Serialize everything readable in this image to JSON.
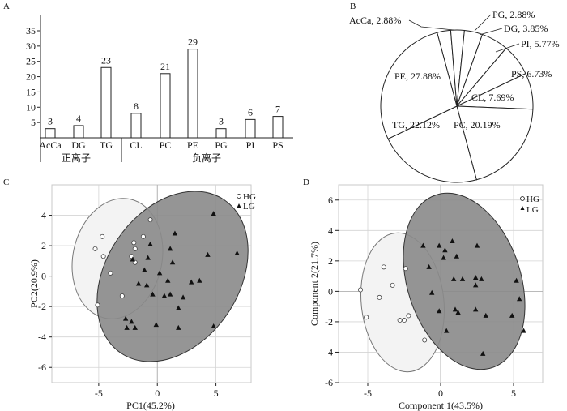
{
  "chart_data": [
    {
      "panel": "A",
      "type": "bar",
      "ylim": [
        0,
        35
      ],
      "yticks": [
        5,
        10,
        15,
        20,
        25,
        30,
        35
      ],
      "categories": [
        "AcCa",
        "DG",
        "TG",
        "CL",
        "PC",
        "PE",
        "PG",
        "PI",
        "PS"
      ],
      "values": [
        3,
        4,
        23,
        8,
        21,
        29,
        3,
        6,
        7
      ],
      "groups": [
        {
          "label": "正离子",
          "categories": [
            "AcCa",
            "DG",
            "TG"
          ]
        },
        {
          "label": "负离子",
          "categories": [
            "CL",
            "PC",
            "PE",
            "PG",
            "PI",
            "PS"
          ]
        }
      ]
    },
    {
      "panel": "B",
      "type": "pie",
      "labels": [
        "AcCa, 2.88%",
        "PG, 2.88%",
        "DG, 3.85%",
        "PI, 5.77%",
        "PS, 6.73%",
        "CL, 7.69%",
        "PC, 20.19%",
        "TG, 22.12%",
        "PE, 27.88%"
      ],
      "categories": [
        "AcCa",
        "PG",
        "DG",
        "PI",
        "PS",
        "CL",
        "PC",
        "TG",
        "PE"
      ],
      "values": [
        2.88,
        2.88,
        3.85,
        5.77,
        6.73,
        7.69,
        20.19,
        22.12,
        27.88
      ]
    },
    {
      "panel": "C",
      "type": "scatter",
      "xlabel": "PC1(45.2%)",
      "ylabel": "PC2(20.9%)",
      "xlim": [
        -9,
        8
      ],
      "ylim": [
        -7,
        6
      ],
      "xticks": [
        -5,
        0,
        5
      ],
      "yticks": [
        -6,
        -4,
        -2,
        0,
        2,
        4
      ],
      "legend": [
        "HG",
        "LG"
      ],
      "series": [
        {
          "name": "HG",
          "marker": "open-circle",
          "points": [
            [
              -5.3,
              1.8
            ],
            [
              -4.7,
              2.6
            ],
            [
              -4.6,
              1.3
            ],
            [
              -4.0,
              0.2
            ],
            [
              -5.1,
              -1.9
            ],
            [
              -3.0,
              -1.3
            ],
            [
              -2.2,
              1.3
            ],
            [
              -2.0,
              2.2
            ],
            [
              -1.9,
              0.9
            ],
            [
              -1.9,
              1.8
            ],
            [
              -1.2,
              2.6
            ],
            [
              -0.6,
              3.7
            ]
          ]
        },
        {
          "name": "LG",
          "marker": "filled-triangle",
          "points": [
            [
              4.8,
              4.1
            ],
            [
              1.5,
              2.8
            ],
            [
              -0.6,
              2.1
            ],
            [
              1.1,
              1.8
            ],
            [
              -0.8,
              1.2
            ],
            [
              1.3,
              0.9
            ],
            [
              -2.1,
              1.1
            ],
            [
              6.8,
              1.5
            ],
            [
              4.3,
              1.4
            ],
            [
              -1.1,
              0.4
            ],
            [
              0.2,
              0.2
            ],
            [
              -1.6,
              -0.5
            ],
            [
              -0.9,
              -0.6
            ],
            [
              0.9,
              -0.3
            ],
            [
              2.9,
              -0.4
            ],
            [
              3.6,
              -0.3
            ],
            [
              -0.4,
              -1.2
            ],
            [
              0.6,
              -1.3
            ],
            [
              1.1,
              -1.2
            ],
            [
              2.2,
              -1.4
            ],
            [
              1.8,
              -2.1
            ],
            [
              -2.7,
              -2.8
            ],
            [
              -2.6,
              -3.4
            ],
            [
              -2.2,
              -3.0
            ],
            [
              -1.9,
              -3.4
            ],
            [
              -0.1,
              -3.2
            ],
            [
              1.8,
              -3.4
            ],
            [
              4.8,
              -3.3
            ]
          ]
        }
      ],
      "ellipses": [
        "HG",
        "LG"
      ]
    },
    {
      "panel": "D",
      "type": "scatter",
      "xlabel": "Component 1(43.5%)",
      "ylabel": "Component 2(21.7%)",
      "xlim": [
        -7,
        7
      ],
      "ylim": [
        -6,
        7
      ],
      "xticks": [
        -5,
        0,
        5
      ],
      "yticks": [
        -6,
        -4,
        -2,
        0,
        2,
        4,
        6
      ],
      "legend": [
        "HG",
        "LG"
      ],
      "series": [
        {
          "name": "HG",
          "marker": "open-circle",
          "points": [
            [
              -5.5,
              0.1
            ],
            [
              -5.1,
              -1.7
            ],
            [
              -4.2,
              -0.4
            ],
            [
              -3.9,
              1.6
            ],
            [
              -3.3,
              0.4
            ],
            [
              -2.8,
              -1.9
            ],
            [
              -2.5,
              -1.9
            ],
            [
              -2.2,
              -1.6
            ],
            [
              -2.4,
              1.5
            ],
            [
              -1.1,
              -3.2
            ]
          ]
        },
        {
          "name": "LG",
          "marker": "filled-triangle",
          "points": [
            [
              -1.2,
              3.0
            ],
            [
              -0.1,
              3.0
            ],
            [
              0.8,
              3.3
            ],
            [
              0.3,
              2.7
            ],
            [
              2.5,
              3.0
            ],
            [
              0.2,
              2.2
            ],
            [
              1.1,
              2.3
            ],
            [
              -0.8,
              1.6
            ],
            [
              0.9,
              0.8
            ],
            [
              1.5,
              0.8
            ],
            [
              2.4,
              0.9
            ],
            [
              2.8,
              0.8
            ],
            [
              5.2,
              0.7
            ],
            [
              2.4,
              0.4
            ],
            [
              -0.6,
              -0.1
            ],
            [
              5.4,
              -0.5
            ],
            [
              -0.1,
              -1.3
            ],
            [
              1.0,
              -1.2
            ],
            [
              1.2,
              -1.4
            ],
            [
              2.4,
              -1.2
            ],
            [
              3.1,
              -1.6
            ],
            [
              4.9,
              -1.6
            ],
            [
              0.4,
              -2.6
            ],
            [
              5.7,
              -2.6
            ],
            [
              2.9,
              -4.1
            ]
          ]
        }
      ],
      "ellipses": [
        "HG",
        "LG"
      ]
    }
  ]
}
